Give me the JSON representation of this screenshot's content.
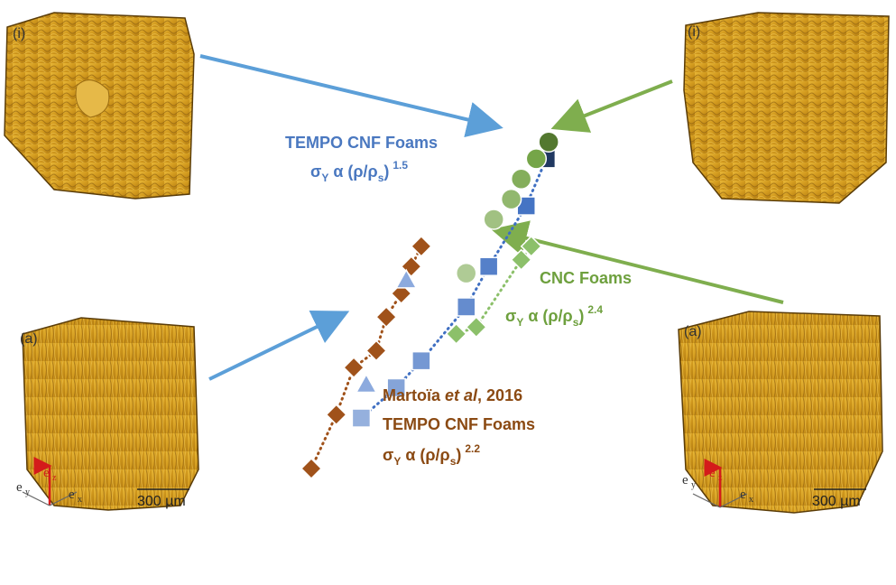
{
  "panels": {
    "top_left_label": "(i)",
    "top_right_label": "(i)",
    "bottom_left_label": "(a)",
    "bottom_right_label": "(a)",
    "scale_left": "300 µm",
    "scale_right": "300 µm",
    "axis_labels": {
      "z": "e",
      "z_sub": "z",
      "y": "e",
      "y_sub": "y",
      "x": "e",
      "x_sub": "x"
    }
  },
  "annotations": {
    "tempo_title": "TEMPO CNF Foams",
    "tempo_law": "σ",
    "tempo_law_sub": "Y",
    "tempo_law_rest": " α (ρ/ρ",
    "tempo_law_s": "s",
    "tempo_law_close": ")",
    "tempo_exp": "1.5",
    "cnc_title": "CNC Foams",
    "cnc_law": "σ",
    "cnc_law_sub": "Y",
    "cnc_law_rest": " α (ρ/ρ",
    "cnc_law_s": "s",
    "cnc_law_close": ")",
    "cnc_exp": "2.4",
    "martoia_author": "Martoïa ",
    "martoia_etal": "et al",
    "martoia_year": ", 2016",
    "martoia_title": "TEMPO CNF Foams",
    "martoia_law": "σ",
    "martoia_law_sub": "Y",
    "martoia_law_rest": " α (ρ/ρ",
    "martoia_law_s": "s",
    "martoia_law_close": ")",
    "martoia_exp": "2.2"
  },
  "chart_data": {
    "type": "scatter",
    "title": "",
    "xlabel": "",
    "ylabel": "",
    "scale": "log-log",
    "grid": false,
    "legend": "none",
    "series": [
      {
        "name": "TEMPO CNF Foams",
        "marker": "square",
        "color": "#3f6fc2",
        "points": [
          {
            "x": 0.2,
            "y": 0.15
          },
          {
            "x": 0.34,
            "y": 0.24
          },
          {
            "x": 0.44,
            "y": 0.32
          },
          {
            "x": 0.62,
            "y": 0.48
          },
          {
            "x": 0.71,
            "y": 0.6
          },
          {
            "x": 0.86,
            "y": 0.78
          },
          {
            "x": 0.94,
            "y": 0.92
          }
        ],
        "fit_exponent": 1.5
      },
      {
        "name": "CNC Foams",
        "marker": "circle",
        "color": "#6ea03e",
        "points": [
          {
            "x": 0.62,
            "y": 0.58
          },
          {
            "x": 0.73,
            "y": 0.74
          },
          {
            "x": 0.8,
            "y": 0.8
          },
          {
            "x": 0.84,
            "y": 0.86
          },
          {
            "x": 0.9,
            "y": 0.92
          },
          {
            "x": 0.95,
            "y": 0.97
          }
        ]
      },
      {
        "name": "CNC Foams",
        "marker": "diamond",
        "color": "#8cc06a",
        "points": [
          {
            "x": 0.58,
            "y": 0.4
          },
          {
            "x": 0.66,
            "y": 0.42
          },
          {
            "x": 0.84,
            "y": 0.62
          },
          {
            "x": 0.88,
            "y": 0.66
          }
        ],
        "fit_exponent": 2.4
      },
      {
        "name": "Martoïa et al, 2016 TEMPO CNF Foams",
        "marker": "diamond",
        "color": "#a0521a",
        "points": [
          {
            "x": 0.0,
            "y": 0.0
          },
          {
            "x": 0.1,
            "y": 0.16
          },
          {
            "x": 0.17,
            "y": 0.3
          },
          {
            "x": 0.26,
            "y": 0.35
          },
          {
            "x": 0.3,
            "y": 0.45
          },
          {
            "x": 0.36,
            "y": 0.52
          },
          {
            "x": 0.4,
            "y": 0.6
          },
          {
            "x": 0.44,
            "y": 0.66
          }
        ],
        "fit_exponent": 2.2
      },
      {
        "name": "TEMPO CNF Foams",
        "marker": "triangle",
        "color": "#6f95d6",
        "points": [
          {
            "x": 0.38,
            "y": 0.56
          },
          {
            "x": 0.22,
            "y": 0.25
          }
        ]
      }
    ]
  },
  "colors": {
    "foam": "#d9a424",
    "foam_dark": "#7a5410",
    "blue_arrow": "#5c9fd8",
    "green_arrow": "#7fae4e",
    "axis_red": "#d41b1b"
  }
}
